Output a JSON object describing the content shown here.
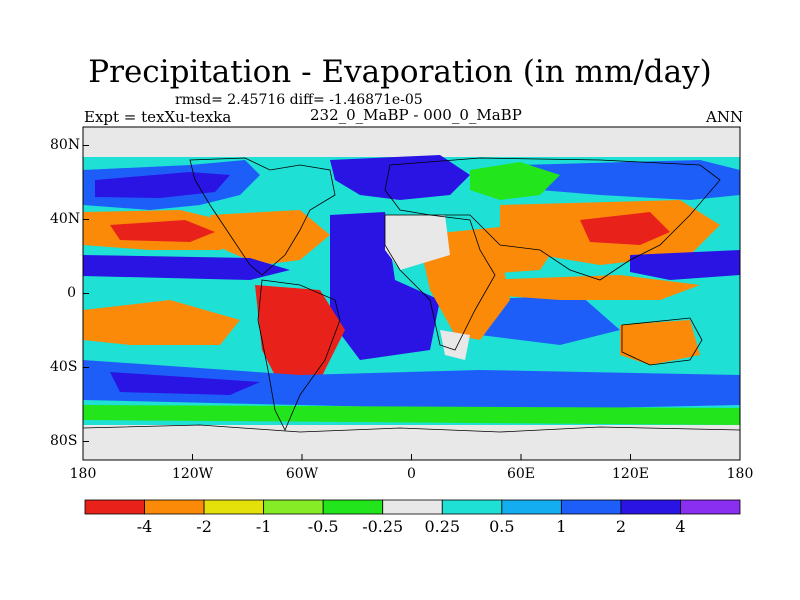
{
  "colors": {
    "c_n4": "#e8221a",
    "c_n2": "#fb8a08",
    "c_n1": "#e3e00a",
    "c_n05": "#85ec25",
    "c_n025": "#23e51c",
    "c_zero": "#e8e8e8",
    "c_p025": "#1fe0d5",
    "c_p05": "#14aef0",
    "c_p1": "#1e5ef8",
    "c_p2": "#2a14e4",
    "c_p4": "#8a2ef0"
  },
  "chart_data": {
    "type": "heatmap",
    "title": "Precipitation - Evaporation (in mm/day)",
    "subtitle": "rmsd= 2.45716 diff= -1.46871e-05",
    "experiment": "Expt = texXu-texka",
    "case": "232_0_MaBP - 000_0_MaBP",
    "season": "ANN",
    "x_range": [
      -180,
      180
    ],
    "y_range": [
      -90,
      90
    ],
    "x_ticks": [
      {
        "value": -180,
        "label": "180"
      },
      {
        "value": -120,
        "label": "120W"
      },
      {
        "value": -60,
        "label": "60W"
      },
      {
        "value": 0,
        "label": "0"
      },
      {
        "value": 60,
        "label": "60E"
      },
      {
        "value": 120,
        "label": "120E"
      },
      {
        "value": 180,
        "label": "180"
      }
    ],
    "y_ticks": [
      {
        "value": 80,
        "label": "80N"
      },
      {
        "value": 40,
        "label": "40N"
      },
      {
        "value": 0,
        "label": "0"
      },
      {
        "value": -40,
        "label": "40S"
      },
      {
        "value": -80,
        "label": "80S"
      }
    ],
    "colorbar": {
      "levels": [
        "-4",
        "-2",
        "-1",
        "-0.5",
        "-0.25",
        "0.25",
        "0.5",
        "1",
        "2",
        "4"
      ],
      "colors": [
        "#e8221a",
        "#fb8a08",
        "#e3e00a",
        "#85ec25",
        "#23e51c",
        "#e8e8e8",
        "#1fe0d5",
        "#14aef0",
        "#1e5ef8",
        "#2a14e4",
        "#8a2ef0"
      ]
    }
  }
}
